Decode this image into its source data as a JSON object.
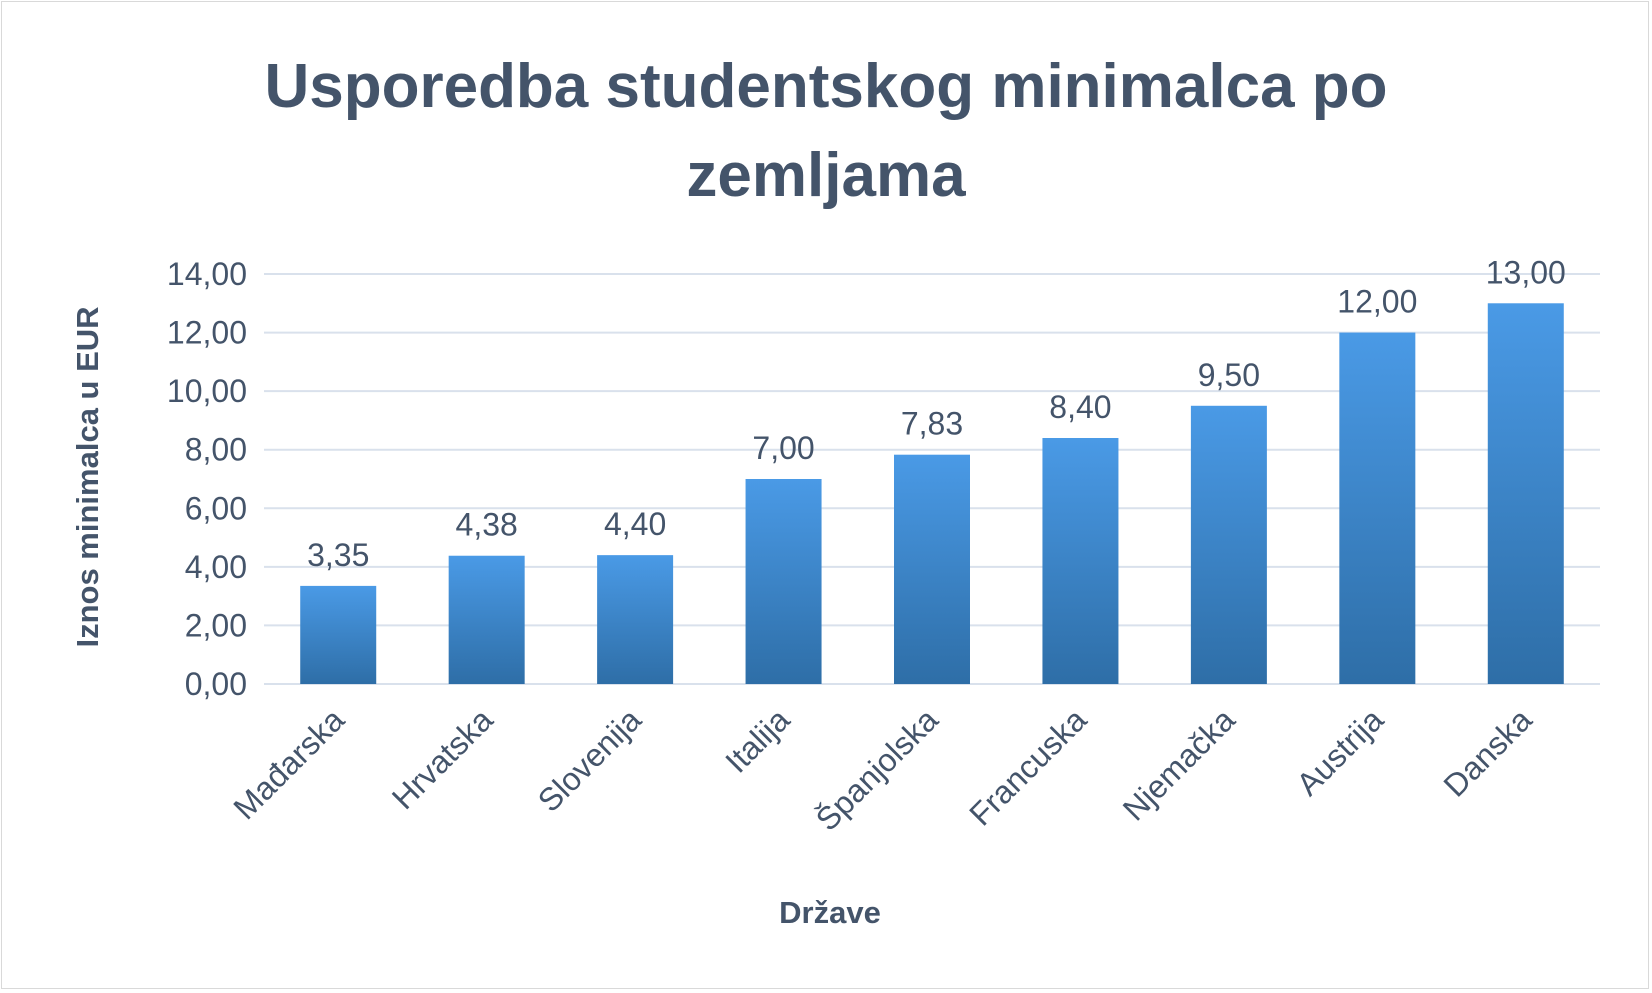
{
  "chart_data": {
    "type": "bar",
    "title": "Usporedba studentskog minimalca po zemljama",
    "title_lines": [
      "Usporedba studentskog minimalca po",
      "zemljama"
    ],
    "xlabel": "Države",
    "ylabel": "Iznos minimalca u EUR",
    "categories": [
      "Mađarska",
      "Hrvatska",
      "Slovenija",
      "Italija",
      "Španjolska",
      "Francuska",
      "Njemačka",
      "Austrija",
      "Danska"
    ],
    "values": [
      3.35,
      4.38,
      4.4,
      7.0,
      7.83,
      8.4,
      9.5,
      12.0,
      13.0
    ],
    "data_labels": [
      "3,35",
      "4,38",
      "4,40",
      "7,00",
      "7,83",
      "8,40",
      "9,50",
      "12,00",
      "13,00"
    ],
    "ylim": [
      0,
      14
    ],
    "yticks": [
      0,
      2,
      4,
      6,
      8,
      10,
      12,
      14
    ],
    "ytick_labels": [
      "0,00",
      "2,00",
      "4,00",
      "6,00",
      "8,00",
      "10,00",
      "12,00",
      "14,00"
    ],
    "grid": true,
    "legend": "none",
    "colors": {
      "bar_top": "#4a9ae6",
      "bar_bottom": "#2e6ea7",
      "text": "#44546a",
      "grid": "#d9e1ec"
    }
  }
}
